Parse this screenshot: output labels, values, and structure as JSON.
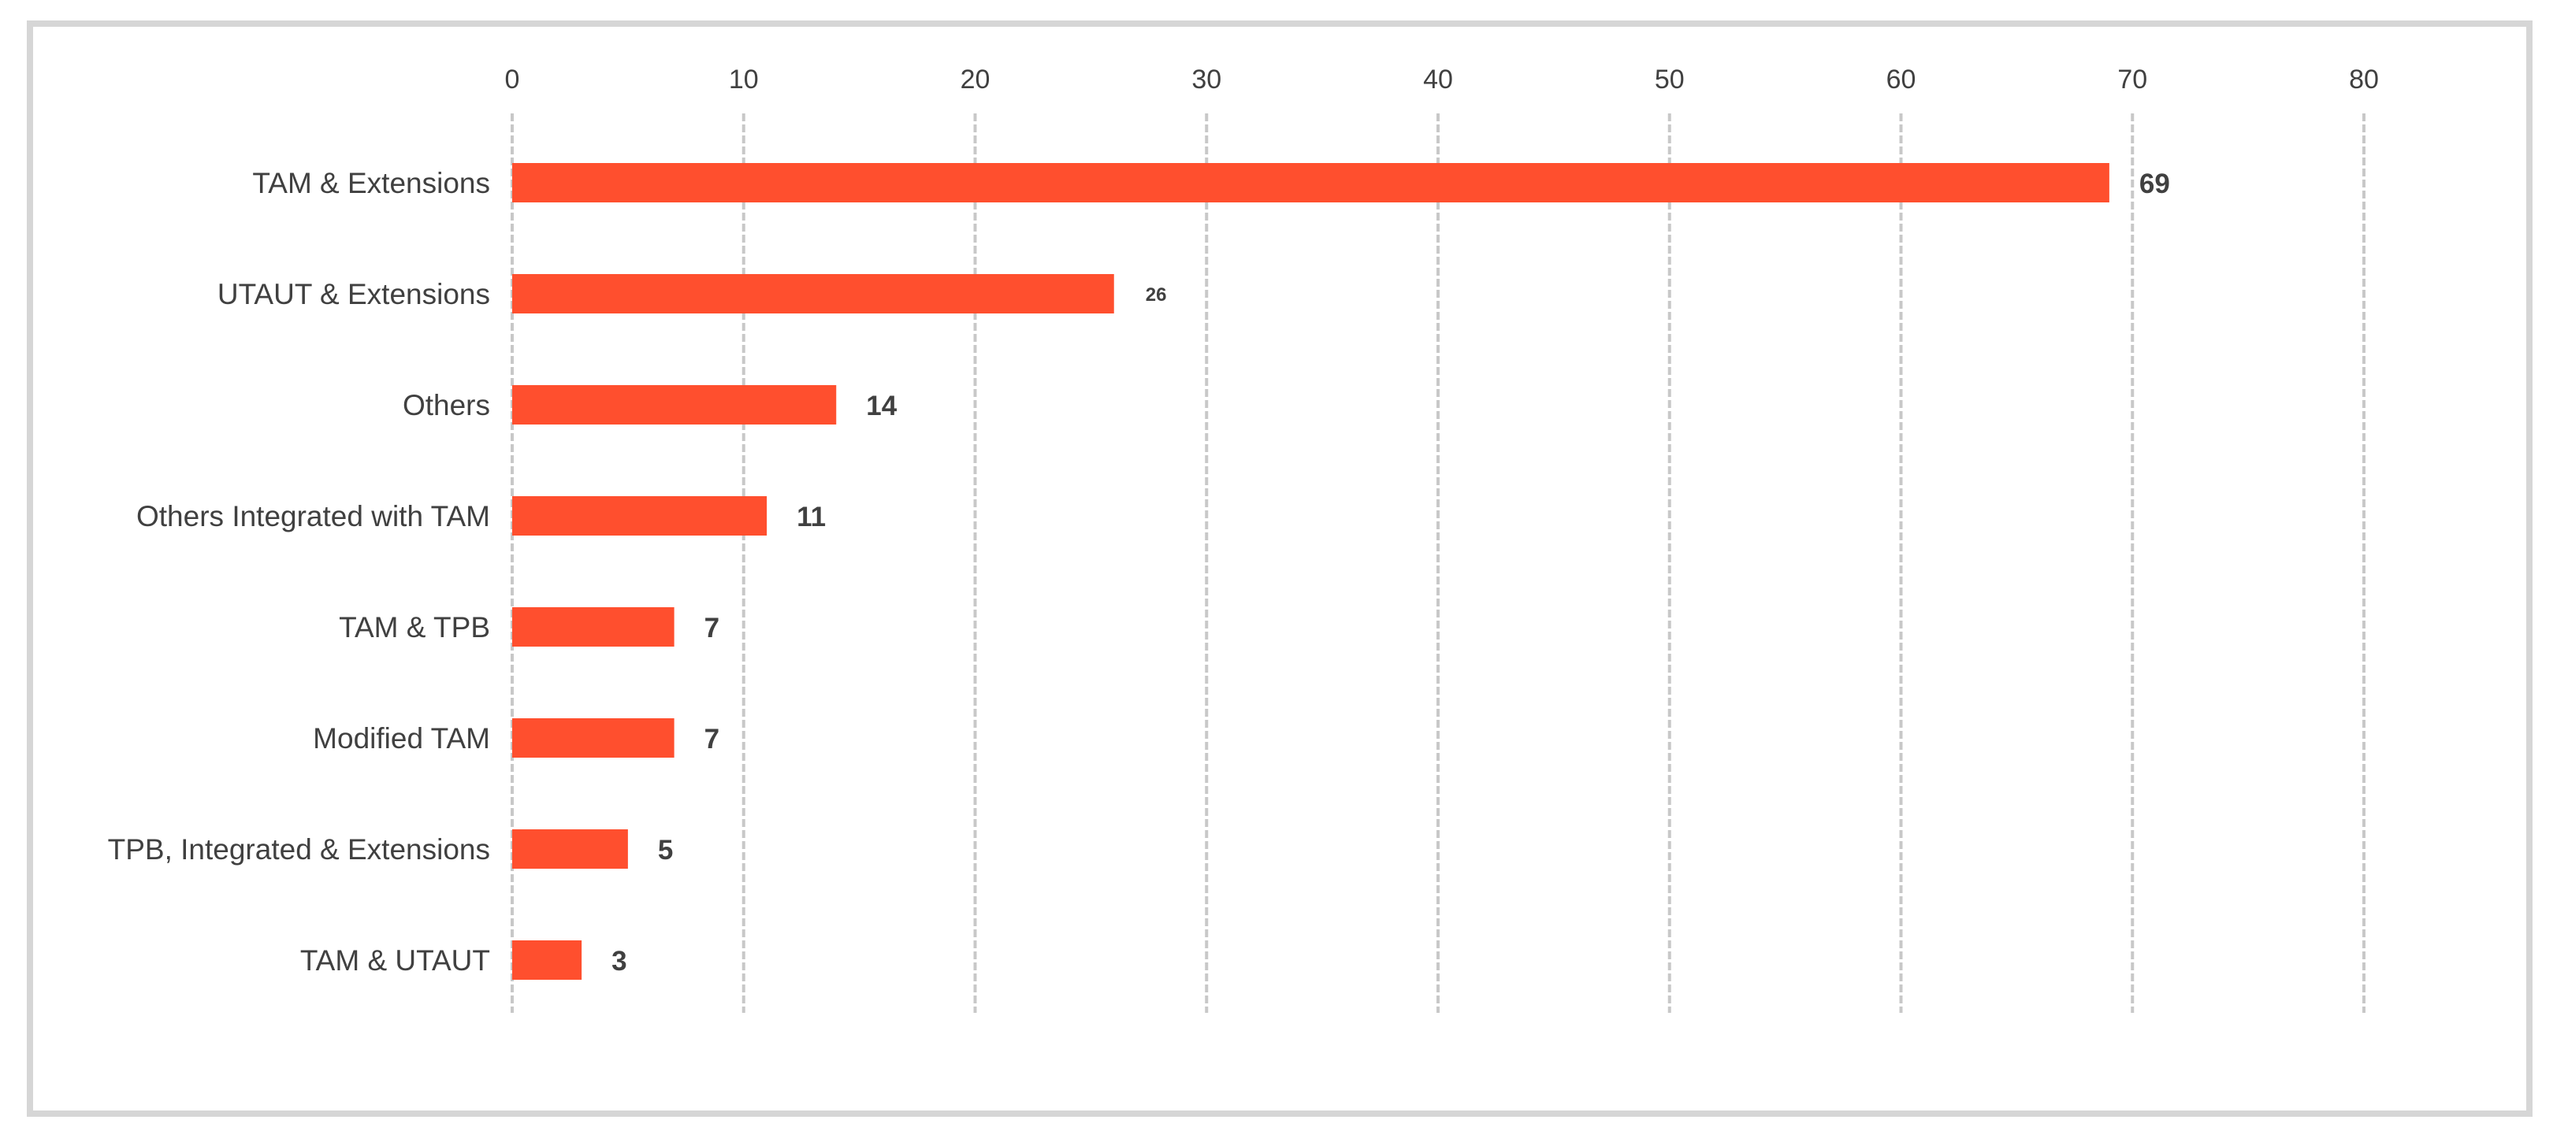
{
  "chart_data": {
    "type": "bar",
    "orientation": "horizontal",
    "title": "",
    "xlabel": "",
    "ylabel": "",
    "categories": [
      "TAM & Extensions",
      "UTAUT & Extensions",
      "Others",
      "Others Integrated with TAM",
      "TAM & TPB",
      "Modified TAM",
      "TPB, Integrated & Extensions",
      "TAM & UTAUT"
    ],
    "values": [
      69,
      26,
      14,
      11,
      7,
      7,
      5,
      3
    ],
    "data_labels": [
      "69",
      "26",
      "14",
      "11",
      "7",
      "7",
      "5",
      "3"
    ],
    "xlim": [
      0,
      80
    ],
    "x_ticks": [
      0,
      10,
      20,
      30,
      40,
      50,
      60,
      70,
      80
    ],
    "x_tick_labels": [
      "0",
      "10",
      "20",
      "30",
      "40",
      "50",
      "60",
      "70",
      "80"
    ],
    "x_axis_position": "top",
    "grid": "vertical",
    "legend": "none",
    "bar_color": "#ff4f2e",
    "grid_color": "#c8c8c8",
    "text_color": "#404040"
  }
}
